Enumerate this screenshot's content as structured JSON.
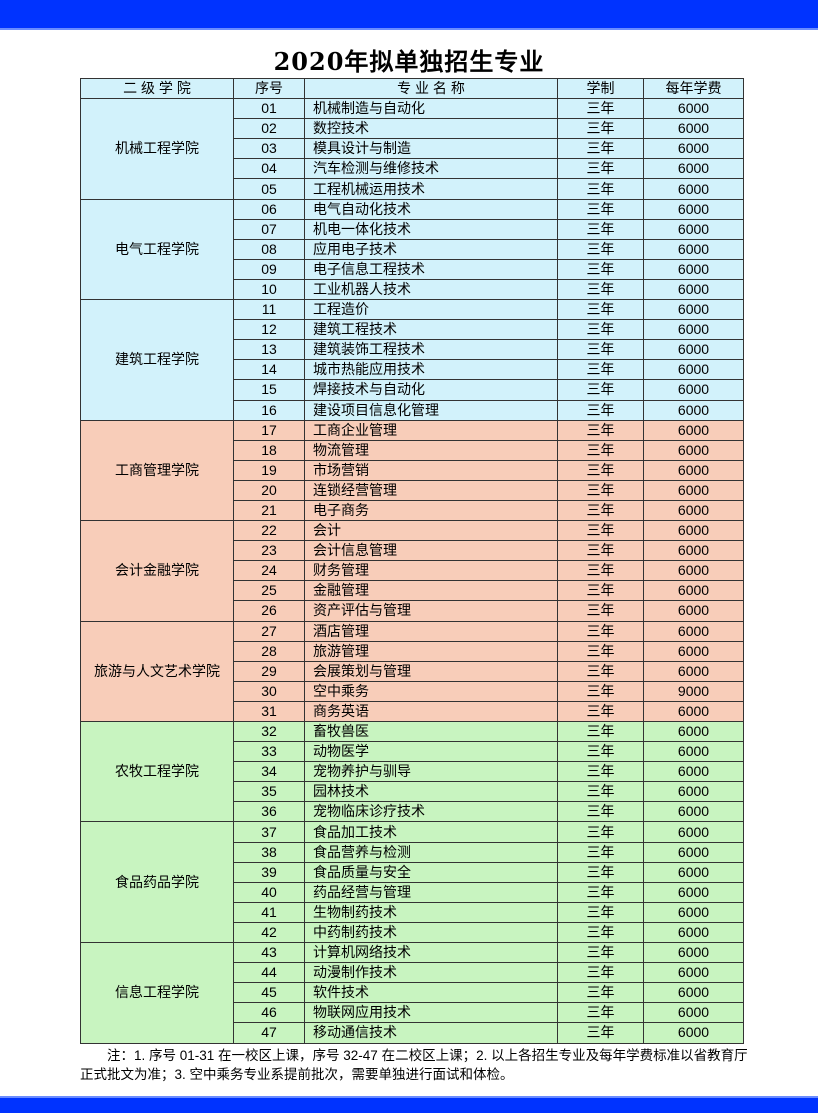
{
  "title": "2020年拟单独招生专业",
  "colors": {
    "bar": "#0033ff",
    "engineering": "#d2f2fb",
    "business": "#f8cdb9",
    "agri": "#c8f4c0"
  },
  "headers": [
    "二 级 学 院",
    "序号",
    "专 业 名 称",
    "学制",
    "每年学费"
  ],
  "groups": [
    {
      "college": "机械工程学院",
      "color": "#d2f2fb",
      "rows": [
        [
          "01",
          "机械制造与自动化",
          "三年",
          "6000"
        ],
        [
          "02",
          "数控技术",
          "三年",
          "6000"
        ],
        [
          "03",
          "模具设计与制造",
          "三年",
          "6000"
        ],
        [
          "04",
          "汽车检测与维修技术",
          "三年",
          "6000"
        ],
        [
          "05",
          "工程机械运用技术",
          "三年",
          "6000"
        ]
      ]
    },
    {
      "college": "电气工程学院",
      "color": "#d2f2fb",
      "rows": [
        [
          "06",
          "电气自动化技术",
          "三年",
          "6000"
        ],
        [
          "07",
          "机电一体化技术",
          "三年",
          "6000"
        ],
        [
          "08",
          "应用电子技术",
          "三年",
          "6000"
        ],
        [
          "09",
          "电子信息工程技术",
          "三年",
          "6000"
        ],
        [
          "10",
          "工业机器人技术",
          "三年",
          "6000"
        ]
      ]
    },
    {
      "college": "建筑工程学院",
      "color": "#d2f2fb",
      "rows": [
        [
          "11",
          "工程造价",
          "三年",
          "6000"
        ],
        [
          "12",
          "建筑工程技术",
          "三年",
          "6000"
        ],
        [
          "13",
          "建筑装饰工程技术",
          "三年",
          "6000"
        ],
        [
          "14",
          "城市热能应用技术",
          "三年",
          "6000"
        ],
        [
          "15",
          "焊接技术与自动化",
          "三年",
          "6000"
        ],
        [
          "16",
          "建设项目信息化管理",
          "三年",
          "6000"
        ]
      ]
    },
    {
      "college": "工商管理学院",
      "color": "#f8cdb9",
      "rows": [
        [
          "17",
          "工商企业管理",
          "三年",
          "6000"
        ],
        [
          "18",
          "物流管理",
          "三年",
          "6000"
        ],
        [
          "19",
          "市场营销",
          "三年",
          "6000"
        ],
        [
          "20",
          "连锁经营管理",
          "三年",
          "6000"
        ],
        [
          "21",
          "电子商务",
          "三年",
          "6000"
        ]
      ]
    },
    {
      "college": "会计金融学院",
      "color": "#f8cdb9",
      "rows": [
        [
          "22",
          "会计",
          "三年",
          "6000"
        ],
        [
          "23",
          "会计信息管理",
          "三年",
          "6000"
        ],
        [
          "24",
          "财务管理",
          "三年",
          "6000"
        ],
        [
          "25",
          "金融管理",
          "三年",
          "6000"
        ],
        [
          "26",
          "资产评估与管理",
          "三年",
          "6000"
        ]
      ]
    },
    {
      "college": "旅游与人文艺术学院",
      "color": "#f8cdb9",
      "rows": [
        [
          "27",
          "酒店管理",
          "三年",
          "6000"
        ],
        [
          "28",
          "旅游管理",
          "三年",
          "6000"
        ],
        [
          "29",
          "会展策划与管理",
          "三年",
          "6000"
        ],
        [
          "30",
          "空中乘务",
          "三年",
          "9000"
        ],
        [
          "31",
          "商务英语",
          "三年",
          "6000"
        ]
      ]
    },
    {
      "college": "农牧工程学院",
      "color": "#c8f4c0",
      "rows": [
        [
          "32",
          "畜牧兽医",
          "三年",
          "6000"
        ],
        [
          "33",
          "动物医学",
          "三年",
          "6000"
        ],
        [
          "34",
          "宠物养护与驯导",
          "三年",
          "6000"
        ],
        [
          "35",
          "园林技术",
          "三年",
          "6000"
        ],
        [
          "36",
          "宠物临床诊疗技术",
          "三年",
          "6000"
        ]
      ]
    },
    {
      "college": "食品药品学院",
      "color": "#c8f4c0",
      "rows": [
        [
          "37",
          "食品加工技术",
          "三年",
          "6000"
        ],
        [
          "38",
          "食品营养与检测",
          "三年",
          "6000"
        ],
        [
          "39",
          "食品质量与安全",
          "三年",
          "6000"
        ],
        [
          "40",
          "药品经营与管理",
          "三年",
          "6000"
        ],
        [
          "41",
          "生物制药技术",
          "三年",
          "6000"
        ],
        [
          "42",
          "中药制药技术",
          "三年",
          "6000"
        ]
      ]
    },
    {
      "college": "信息工程学院",
      "color": "#c8f4c0",
      "rows": [
        [
          "43",
          "计算机网络技术",
          "三年",
          "6000"
        ],
        [
          "44",
          "动漫制作技术",
          "三年",
          "6000"
        ],
        [
          "45",
          "软件技术",
          "三年",
          "6000"
        ],
        [
          "46",
          "物联网应用技术",
          "三年",
          "6000"
        ],
        [
          "47",
          "移动通信技术",
          "三年",
          "6000"
        ]
      ]
    }
  ],
  "note": "注：1. 序号 01-31 在一校区上课，序号 32-47 在二校区上课；2. 以上各招生专业及每年学费标准以省教育厅正式批文为准；3. 空中乘务专业系提前批次，需要单独进行面试和体检。"
}
